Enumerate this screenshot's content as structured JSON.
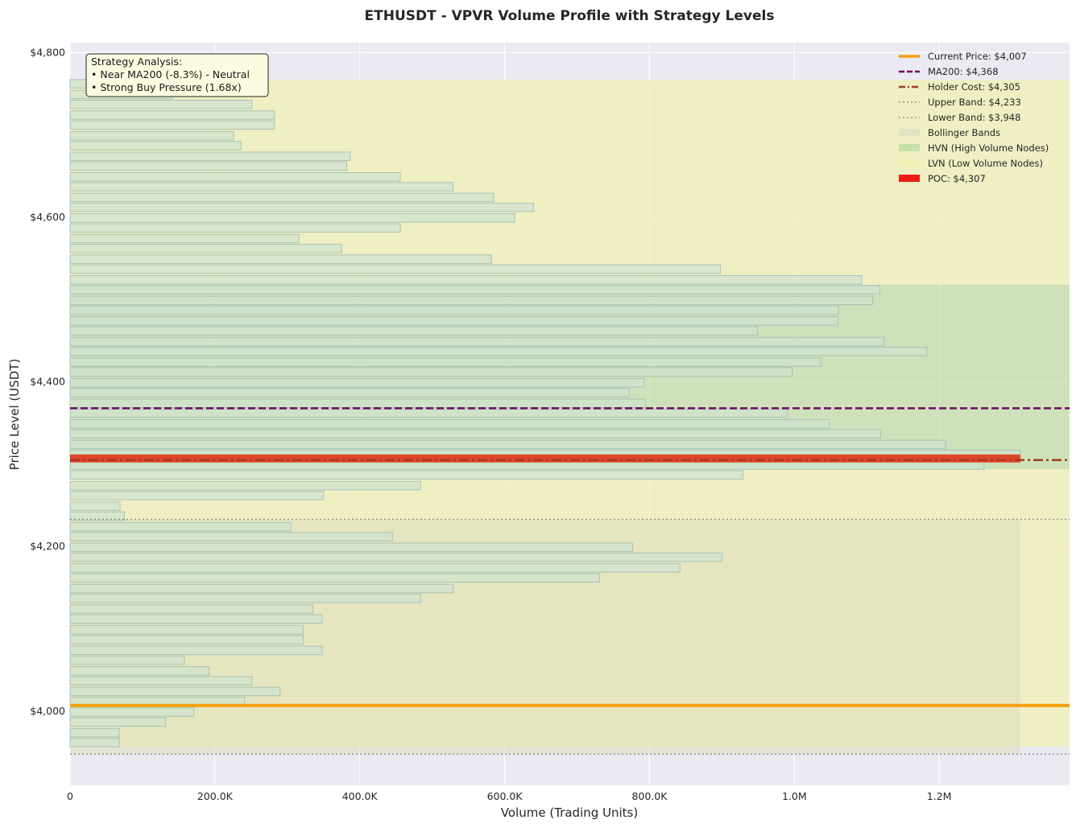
{
  "chart_data": {
    "type": "bar",
    "orientation": "horizontal",
    "title": "ETHUSDT - VPVR Volume Profile with Strategy Levels",
    "xlabel": "Volume (Trading Units)",
    "ylabel": "Price Level (USDT)",
    "xlim": [
      0,
      1380000
    ],
    "ylim": [
      3910,
      4812
    ],
    "x_ticks": [
      0,
      200000,
      400000,
      600000,
      800000,
      1000000,
      1200000
    ],
    "x_tick_labels": [
      "0",
      "200.0K",
      "400.0K",
      "600.0K",
      "800.0K",
      "1.0M",
      "1.2M"
    ],
    "y_ticks": [
      4000,
      4200,
      4400,
      4600,
      4800
    ],
    "y_tick_labels": [
      "$4,000",
      "$4,200",
      "$4,400",
      "$4,600",
      "$4,800"
    ],
    "grid": true,
    "legend_position": "top-right",
    "bin_height": 10.3,
    "price_bins": [
      3962,
      3974,
      3987,
      3999,
      4012,
      4024,
      4037,
      4049,
      4062,
      4074,
      4087,
      4099,
      4112,
      4124,
      4137,
      4149,
      4162,
      4174,
      4187,
      4199,
      4212,
      4224,
      4237,
      4249,
      4262,
      4274,
      4287,
      4299,
      4312,
      4324,
      4337,
      4349,
      4362,
      4374,
      4387,
      4399,
      4412,
      4424,
      4437,
      4449,
      4462,
      4474,
      4487,
      4499,
      4512,
      4524,
      4537,
      4549,
      4562,
      4574,
      4587,
      4599,
      4612,
      4624,
      4637,
      4649,
      4662,
      4674,
      4687,
      4699,
      4712,
      4724,
      4737,
      4749,
      4762
    ],
    "volumes": [
      68000,
      68000,
      132000,
      171000,
      241000,
      290000,
      251000,
      192000,
      158000,
      348000,
      322000,
      322000,
      348000,
      335000,
      484000,
      529000,
      731000,
      842000,
      900000,
      777000,
      445000,
      305000,
      75000,
      69000,
      350000,
      484000,
      929000,
      1262000,
      1312000,
      1209000,
      1119000,
      1048000,
      990000,
      794000,
      772000,
      793000,
      997000,
      1037000,
      1183000,
      1124000,
      949000,
      1060000,
      1061000,
      1108000,
      1118000,
      1093000,
      898000,
      582000,
      375000,
      316000,
      456000,
      614000,
      640000,
      585000,
      529000,
      456000,
      382000,
      387000,
      236000,
      226000,
      282000,
      282000,
      251000,
      142000,
      68000
    ],
    "hvn_range": [
      4294,
      4518
    ],
    "lvn_ranges": [
      [
        3957,
        4294
      ],
      [
        4518,
        4767
      ]
    ],
    "bollinger": {
      "upper": 4233,
      "lower": 3948,
      "x_extent": 1312000
    },
    "levels": {
      "current_price": 4007,
      "ma200": 4368,
      "holder_cost": 4305,
      "upper_band": 4233,
      "lower_band": 3948,
      "poc": 4307
    },
    "colors": {
      "plot_bg": "#eaeaf2",
      "bar_fill": "#cfe3cf",
      "bar_edge": "#a9c2b6",
      "hvn": "#bcdb95",
      "lvn": "#f1f0b3",
      "bollinger": "#ddddbc",
      "current_price": "#f5a00c",
      "ma200": "#6b0a64",
      "holder_cost": "#a53a22",
      "band": "#8f8f8f",
      "poc": "#e0391b"
    },
    "legend": [
      {
        "label": "Current Price: $4,007",
        "style": "solid",
        "color": "#f5a00c"
      },
      {
        "label": "MA200: $4,368",
        "style": "dashed",
        "color": "#6b0a64"
      },
      {
        "label": "Holder Cost: $4,305",
        "style": "dashdot",
        "color": "#a53a22"
      },
      {
        "label": "Upper Band: $4,233",
        "style": "dotted",
        "color": "#8f8f8f"
      },
      {
        "label": "Lower Band: $3,948",
        "style": "dotted",
        "color": "#8f8f8f"
      },
      {
        "label": "Bollinger Bands",
        "style": "patch",
        "color": "#e2e2c6"
      },
      {
        "label": "HVN (High Volume Nodes)",
        "style": "patch",
        "color": "#c5e0a8"
      },
      {
        "label": "LVN (Low Volume Nodes)",
        "style": "patch",
        "color": "#f1f0b3"
      },
      {
        "label": "POC: $4,307",
        "style": "patch",
        "color": "#ee1c14"
      }
    ],
    "annotation": {
      "lines": [
        "Strategy Analysis:",
        "• Near MA200 (-8.3%) - Neutral",
        "• Strong Buy Pressure (1.68x)"
      ]
    }
  }
}
